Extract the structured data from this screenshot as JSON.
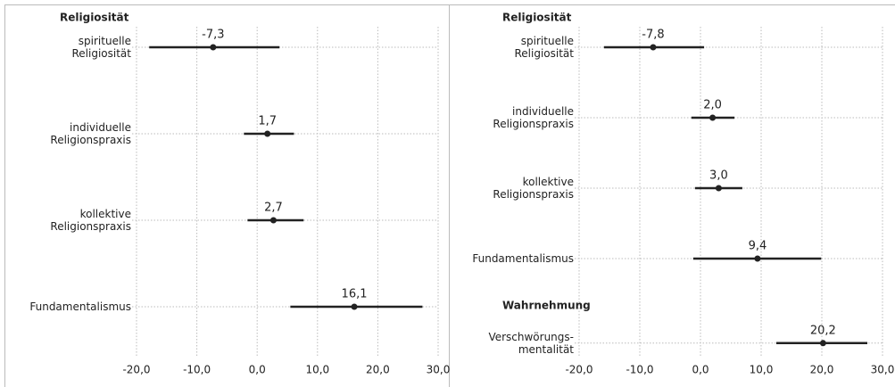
{
  "chart_data": [
    {
      "type": "coefplot",
      "groups": [
        {
          "name": "Religiosität",
          "categories": [
            "spirituelle\nReligiosität",
            "individuelle\nReligionspraxis",
            "kollektive\nReligionspraxis",
            "Fundamentalismus"
          ],
          "values": [
            -7.3,
            1.7,
            2.7,
            16.1
          ],
          "value_labels": [
            "-7,3",
            "1,7",
            "2,7",
            "16,1"
          ],
          "lower": [
            -17.9,
            -2.2,
            -1.6,
            5.5
          ],
          "upper": [
            3.7,
            6.1,
            7.7,
            27.4
          ]
        }
      ],
      "color": "#222222",
      "xlim": [
        -20,
        30
      ],
      "xticks": [
        {
          "value": -20,
          "label": "-20,0"
        },
        {
          "value": -10,
          "label": "-10,0"
        },
        {
          "value": 0,
          "label": "0,0"
        },
        {
          "value": 10,
          "label": "10,0"
        },
        {
          "value": 20,
          "label": "20,0"
        },
        {
          "value": 30,
          "label": "30,0"
        }
      ],
      "grid": true
    },
    {
      "type": "coefplot",
      "groups": [
        {
          "name": "Religiosität",
          "categories": [
            "spirituelle\nReligiosität",
            "individuelle\nReligionspraxis",
            "kollektive\nReligionspraxis",
            "Fundamentalismus"
          ],
          "values": [
            -7.8,
            2.0,
            3.0,
            9.4
          ],
          "value_labels": [
            "-7,8",
            "2,0",
            "3,0",
            "9,4"
          ],
          "lower": [
            -15.9,
            -1.5,
            -0.9,
            -1.2
          ],
          "upper": [
            0.6,
            5.6,
            6.9,
            19.9
          ]
        },
        {
          "name": "Wahrnehmung",
          "categories": [
            "Verschwörungs-\nmentalität"
          ],
          "values": [
            20.2
          ],
          "value_labels": [
            "20,2"
          ],
          "lower": [
            12.5
          ],
          "upper": [
            27.5
          ]
        }
      ],
      "color": "#222222",
      "xlim": [
        -20,
        30
      ],
      "xticks": [
        {
          "value": -20,
          "label": "-20,0"
        },
        {
          "value": -10,
          "label": "-10,0"
        },
        {
          "value": 0,
          "label": "0,0"
        },
        {
          "value": 10,
          "label": "10,0"
        },
        {
          "value": 20,
          "label": "20,0"
        },
        {
          "value": 30,
          "label": "30,0"
        }
      ],
      "grid": true
    }
  ]
}
